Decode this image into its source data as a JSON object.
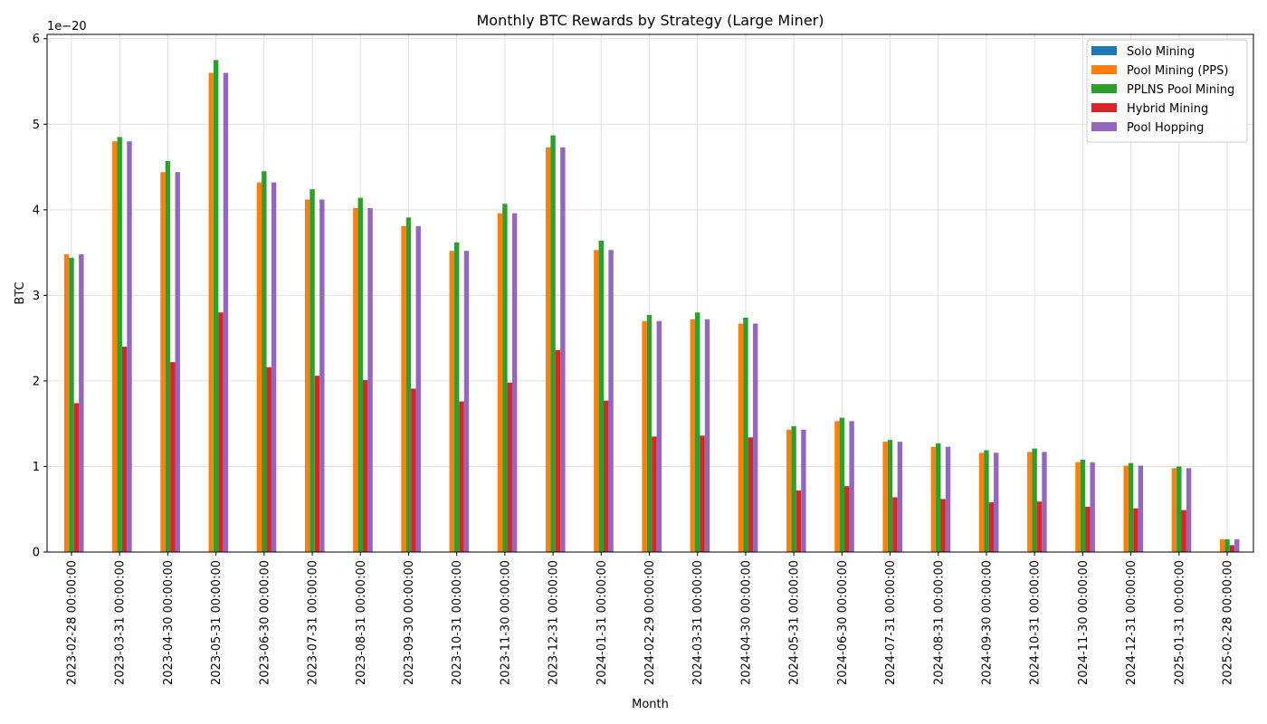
{
  "chart_data": {
    "type": "bar",
    "title": "Monthly BTC Rewards by Strategy (Large Miner)",
    "xlabel": "Month",
    "ylabel": "BTC",
    "y_scale_label": "1e−20",
    "ylim": [
      0,
      6.05
    ],
    "yticks": [
      "0",
      "1",
      "2",
      "3",
      "4",
      "5",
      "6"
    ],
    "grid": true,
    "legend_position": "top-right",
    "categories": [
      "2023-02-28 00:00:00",
      "2023-03-31 00:00:00",
      "2023-04-30 00:00:00",
      "2023-05-31 00:00:00",
      "2023-06-30 00:00:00",
      "2023-07-31 00:00:00",
      "2023-08-31 00:00:00",
      "2023-09-30 00:00:00",
      "2023-10-31 00:00:00",
      "2023-11-30 00:00:00",
      "2023-12-31 00:00:00",
      "2024-01-31 00:00:00",
      "2024-02-29 00:00:00",
      "2024-03-31 00:00:00",
      "2024-04-30 00:00:00",
      "2024-05-31 00:00:00",
      "2024-06-30 00:00:00",
      "2024-07-31 00:00:00",
      "2024-08-31 00:00:00",
      "2024-09-30 00:00:00",
      "2024-10-31 00:00:00",
      "2024-11-30 00:00:00",
      "2024-12-31 00:00:00",
      "2025-01-31 00:00:00",
      "2025-02-28 00:00:00"
    ],
    "series": [
      {
        "name": "Solo Mining",
        "color": "#1f77b4",
        "values": [
          0,
          0,
          0,
          0,
          0,
          0,
          0,
          0,
          0,
          0,
          0,
          0,
          0,
          0,
          0,
          0,
          0,
          0,
          0,
          0,
          0,
          0,
          0,
          0,
          0
        ]
      },
      {
        "name": "Pool Mining (PPS)",
        "color": "#ff7f0e",
        "values": [
          3.48,
          4.8,
          4.44,
          5.6,
          4.32,
          4.12,
          4.02,
          3.81,
          3.52,
          3.96,
          4.73,
          3.53,
          2.7,
          2.72,
          2.67,
          1.43,
          1.53,
          1.29,
          1.23,
          1.16,
          1.17,
          1.05,
          1.01,
          0.98,
          0.15
        ]
      },
      {
        "name": "PPLNS Pool Mining",
        "color": "#2ca02c",
        "values": [
          3.44,
          4.85,
          4.57,
          5.75,
          4.45,
          4.24,
          4.14,
          3.91,
          3.62,
          4.07,
          4.87,
          3.64,
          2.77,
          2.8,
          2.74,
          1.47,
          1.57,
          1.31,
          1.27,
          1.19,
          1.21,
          1.08,
          1.04,
          1.0,
          0.15
        ]
      },
      {
        "name": "Hybrid Mining",
        "color": "#d62728",
        "values": [
          1.74,
          2.4,
          2.22,
          2.8,
          2.16,
          2.06,
          2.01,
          1.91,
          1.76,
          1.98,
          2.36,
          1.77,
          1.35,
          1.36,
          1.34,
          0.72,
          0.77,
          0.64,
          0.62,
          0.58,
          0.59,
          0.53,
          0.51,
          0.49,
          0.08
        ]
      },
      {
        "name": "Pool Hopping",
        "color": "#9467bd",
        "values": [
          3.48,
          4.8,
          4.44,
          5.6,
          4.32,
          4.12,
          4.02,
          3.81,
          3.52,
          3.96,
          4.73,
          3.53,
          2.7,
          2.72,
          2.67,
          1.43,
          1.53,
          1.29,
          1.23,
          1.16,
          1.17,
          1.05,
          1.01,
          0.98,
          0.15
        ]
      }
    ]
  }
}
